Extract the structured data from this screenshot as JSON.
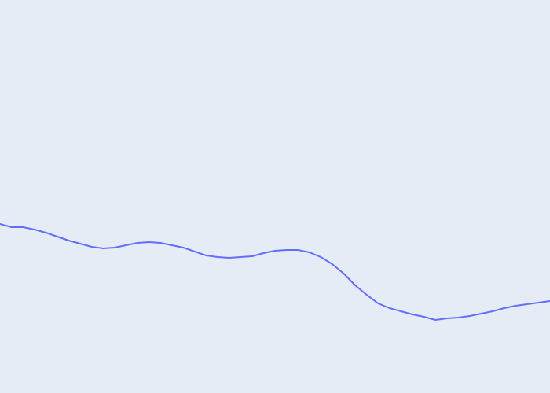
{
  "chart_data": {
    "type": "line",
    "title": "",
    "xlabel": "",
    "ylabel": "",
    "x": [
      0,
      1,
      2,
      3,
      4,
      5,
      6,
      7,
      8,
      9,
      10,
      11,
      12,
      13,
      14,
      15,
      16,
      17,
      18,
      19,
      20,
      21,
      22,
      23,
      24,
      25,
      26,
      27,
      28,
      29,
      30,
      31,
      32,
      33,
      34,
      35,
      36,
      37,
      38,
      39,
      40,
      41,
      42,
      43,
      44,
      45,
      46,
      47,
      48
    ],
    "series": [
      {
        "name": "",
        "color": "#636efa",
        "values": [
          215,
          211,
          211,
          208,
          204,
          199,
          194,
          190,
          186,
          184,
          185,
          188,
          191,
          192,
          191,
          188,
          185,
          180,
          175,
          173,
          172,
          173,
          174,
          178,
          181,
          182,
          182,
          179,
          173,
          164,
          152,
          137,
          125,
          114,
          108,
          104,
          100,
          97,
          93,
          95,
          96,
          98,
          101,
          104,
          108,
          111,
          113,
          115,
          117
        ]
      }
    ],
    "xlim": [
      0,
      48
    ],
    "ylim": [
      0,
      500
    ],
    "grid": false,
    "legend": "none",
    "background": "#e5ecf6"
  }
}
